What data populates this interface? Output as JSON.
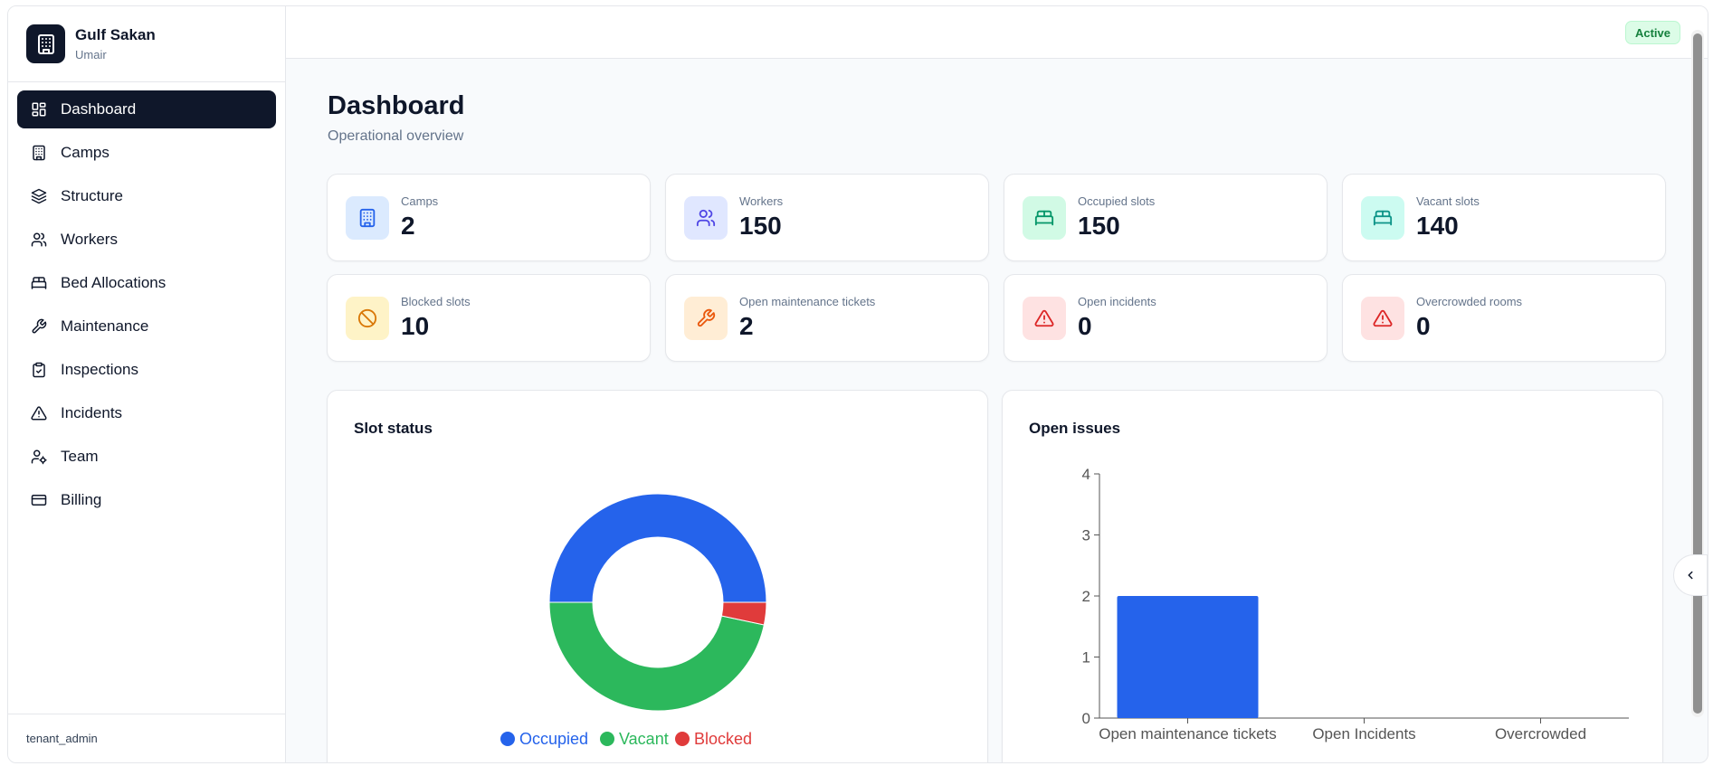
{
  "brand": {
    "name": "Gulf Sakan",
    "user": "Umair"
  },
  "nav": [
    {
      "label": "Dashboard",
      "icon": "dashboard-icon",
      "active": true
    },
    {
      "label": "Camps",
      "icon": "building-icon"
    },
    {
      "label": "Structure",
      "icon": "layers-icon"
    },
    {
      "label": "Workers",
      "icon": "users-icon"
    },
    {
      "label": "Bed Allocations",
      "icon": "bed-icon"
    },
    {
      "label": "Maintenance",
      "icon": "wrench-icon"
    },
    {
      "label": "Inspections",
      "icon": "clipboard-check-icon"
    },
    {
      "label": "Incidents",
      "icon": "alert-triangle-icon"
    },
    {
      "label": "Team",
      "icon": "user-cog-icon"
    },
    {
      "label": "Billing",
      "icon": "credit-card-icon"
    }
  ],
  "footer": {
    "role": "tenant_admin"
  },
  "status": {
    "label": "Active"
  },
  "page": {
    "title": "Dashboard",
    "subtitle": "Operational overview"
  },
  "stats": [
    {
      "label": "Camps",
      "value": "2",
      "icon": "building-icon",
      "bg": "#dbeafe",
      "fg": "#2563eb"
    },
    {
      "label": "Workers",
      "value": "150",
      "icon": "users-icon",
      "bg": "#e0e7ff",
      "fg": "#4f46e5"
    },
    {
      "label": "Occupied slots",
      "value": "150",
      "icon": "bed-icon",
      "bg": "#d1fae5",
      "fg": "#059669"
    },
    {
      "label": "Vacant slots",
      "value": "140",
      "icon": "bed-icon",
      "bg": "#ccfbf1",
      "fg": "#0d9488"
    },
    {
      "label": "Blocked slots",
      "value": "10",
      "icon": "ban-icon",
      "bg": "#fef3c7",
      "fg": "#d97706"
    },
    {
      "label": "Open maintenance tickets",
      "value": "2",
      "icon": "wrench-icon",
      "bg": "#ffedd5",
      "fg": "#ea580c"
    },
    {
      "label": "Open incidents",
      "value": "0",
      "icon": "alert-triangle-icon",
      "bg": "#fee2e2",
      "fg": "#dc2626"
    },
    {
      "label": "Overcrowded rooms",
      "value": "0",
      "icon": "alert-triangle-icon",
      "bg": "#fee2e2",
      "fg": "#dc2626"
    }
  ],
  "charts": {
    "slot_title": "Slot status",
    "issues_title": "Open issues"
  },
  "chart_data": [
    {
      "type": "pie",
      "title": "Slot status",
      "categories": [
        "Occupied",
        "Vacant",
        "Blocked"
      ],
      "values": [
        150,
        140,
        10
      ],
      "colors": [
        "#2563eb",
        "#2cb85c",
        "#e03b3b"
      ],
      "legend": "bottom"
    },
    {
      "type": "bar",
      "title": "Open issues",
      "categories": [
        "Open maintenance tickets",
        "Open Incidents",
        "Overcrowded"
      ],
      "values": [
        2,
        0,
        0
      ],
      "ylim": [
        0,
        4
      ],
      "yticks": [
        "0",
        "1",
        "2",
        "3",
        "4"
      ],
      "color": "#2563eb"
    }
  ]
}
